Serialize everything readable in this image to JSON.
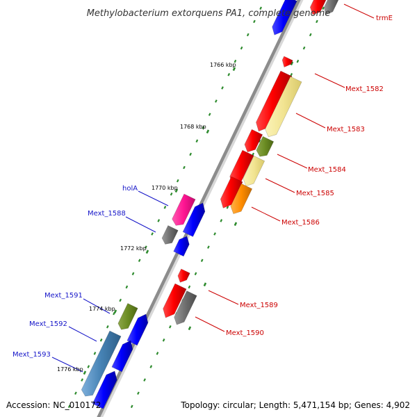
{
  "title": "Methylobacterium extorquens PA1, complete genome",
  "accession": "Accession: NC_010172",
  "topology": "Topology: circular; Length: 5,471,154 bp; Genes: 4,902",
  "colors": {
    "backbone": "#8c8c8c",
    "tick": "#2e8b2e",
    "forward_label": "#cc0000",
    "reverse_label": "#1414c8"
  },
  "ticks": [
    {
      "label": "1766 kbp"
    },
    {
      "label": "1768 kbp"
    },
    {
      "label": "1770 kbp"
    },
    {
      "label": "1772 kbp"
    },
    {
      "label": "1774 kbp"
    },
    {
      "label": "1776 kbp"
    }
  ],
  "labels": [
    {
      "id": "trmE",
      "text": "trmE",
      "strand": "forward"
    },
    {
      "id": "mext1582",
      "text": "Mext_1582",
      "strand": "forward"
    },
    {
      "id": "mext1583",
      "text": "Mext_1583",
      "strand": "forward"
    },
    {
      "id": "mext1584",
      "text": "Mext_1584",
      "strand": "forward"
    },
    {
      "id": "mext1585",
      "text": "Mext_1585",
      "strand": "forward"
    },
    {
      "id": "mext1586",
      "text": "Mext_1586",
      "strand": "forward"
    },
    {
      "id": "mext1589",
      "text": "Mext_1589",
      "strand": "forward"
    },
    {
      "id": "mext1590",
      "text": "Mext_1590",
      "strand": "forward"
    },
    {
      "id": "holA",
      "text": "holA",
      "strand": "reverse"
    },
    {
      "id": "mext1588",
      "text": "Mext_1588",
      "strand": "reverse"
    },
    {
      "id": "mext1591",
      "text": "Mext_1591",
      "strand": "reverse"
    },
    {
      "id": "mext1592",
      "text": "Mext_1592",
      "strand": "reverse"
    },
    {
      "id": "mext1593",
      "text": "Mext_1593",
      "strand": "reverse"
    }
  ]
}
